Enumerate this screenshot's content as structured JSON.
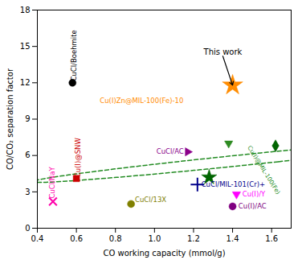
{
  "chart_data": {
    "type": "scatter",
    "xlabel": "CO working capacity (mmol/g)",
    "ylabel": "CO/CO₂ separation factor",
    "xlim": [
      0.4,
      1.7
    ],
    "ylim": [
      0,
      18
    ],
    "xticks": [
      0.4,
      0.6,
      0.8,
      {
        "value": 1,
        "label": "1.0"
      },
      1.2,
      1.4,
      1.6
    ],
    "yticks": [
      0,
      3,
      6,
      9,
      12,
      15,
      18
    ],
    "grid": false,
    "points": [
      {
        "x": 0.48,
        "y": 2.2,
        "marker": "x",
        "color": "#FF00AA",
        "label": "CuCl/NaY"
      },
      {
        "x": 0.58,
        "y": 12.0,
        "marker": "circle",
        "color": "#000000",
        "label": "CuCl/Boehmite"
      },
      {
        "x": 0.6,
        "y": 4.1,
        "marker": "square",
        "color": "#CC0000",
        "label": "Cu(I)@SNW"
      },
      {
        "x": 0.88,
        "y": 2.0,
        "marker": "circle",
        "color": "#808000",
        "label": "CuCl/13X"
      },
      {
        "x": 1.17,
        "y": 6.3,
        "marker": "triangle-right",
        "color": "#8B008B",
        "label": "CuCl/AC"
      },
      {
        "x": 1.22,
        "y": 3.6,
        "marker": "plus",
        "color": "#00008B",
        "label": "CuCl/MIL-101(Cr)+"
      },
      {
        "x": 1.28,
        "y": 4.2,
        "marker": "star",
        "color": "#006400"
      },
      {
        "x": 1.38,
        "y": 7.0,
        "marker": "triangle-down",
        "color": "#2E8B22"
      },
      {
        "x": 1.42,
        "y": 2.8,
        "marker": "triangle-down",
        "color": "#FF00FF",
        "label": "Cu(I)/Y"
      },
      {
        "x": 1.4,
        "y": 1.8,
        "marker": "circle",
        "color": "#800080",
        "label": "Cu(I)/AC"
      },
      {
        "x": 1.62,
        "y": 6.8,
        "marker": "diamond",
        "color": "#006400"
      },
      {
        "x": 1.4,
        "y": 11.8,
        "marker": "star",
        "color": "#FF8C00",
        "label": "Cu(I)Zn@MIL-100(Fe)-10"
      }
    ],
    "annotations": [
      {
        "text": "This work",
        "x": 1.35,
        "y": 14.2,
        "arrow_to": [
          1.4,
          11.8
        ]
      }
    ],
    "ellipse": {
      "center": [
        1.44,
        5.6
      ],
      "width": 0.45,
      "height": 4.2,
      "angle": -30,
      "color": "#228B22",
      "label": "Cu(I)@MIL-100(Fe)",
      "label_x": 1.56,
      "label_y": 4.8
    }
  }
}
